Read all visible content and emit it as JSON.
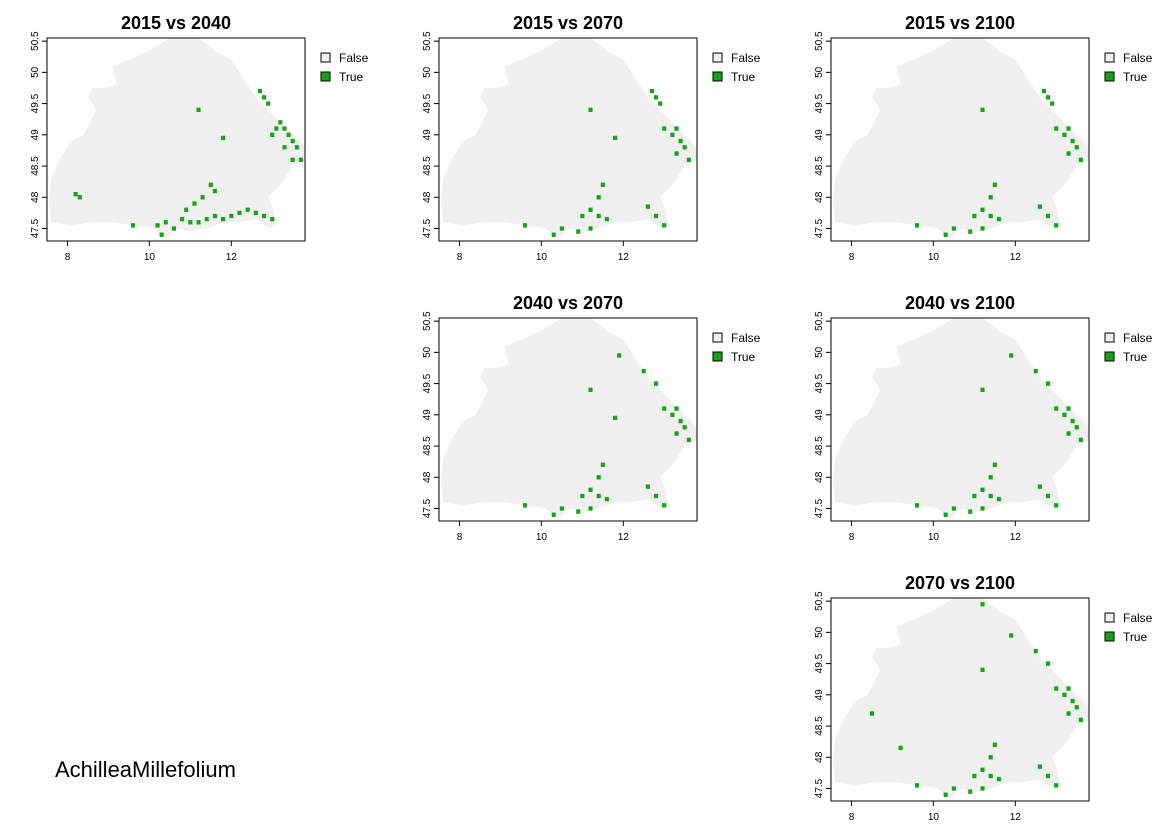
{
  "species_label": "AchilleaMillefolium",
  "colors": {
    "false": "#f0f0f0",
    "true": "#16a416",
    "axis": "#000000"
  },
  "chart_data": [
    {
      "type": "heatmap",
      "title": "2015 vs 2040",
      "xlabel": "",
      "ylabel": "",
      "xlim": [
        7.5,
        13.8
      ],
      "ylim": [
        47.3,
        50.55
      ],
      "x_ticks": [
        8,
        10,
        12
      ],
      "y_ticks": [
        "47.5",
        "48",
        "48.5",
        "49",
        "49.5",
        "50",
        "50.5"
      ],
      "legend": {
        "position": "right",
        "entries": [
          "False",
          "True"
        ]
      },
      "true_cells": [
        [
          12.7,
          49.7
        ],
        [
          12.8,
          49.6
        ],
        [
          12.9,
          49.5
        ],
        [
          13.0,
          49.0
        ],
        [
          13.1,
          49.1
        ],
        [
          13.2,
          49.2
        ],
        [
          13.3,
          49.1
        ],
        [
          13.4,
          49.0
        ],
        [
          13.5,
          48.9
        ],
        [
          13.6,
          48.8
        ],
        [
          13.3,
          48.8
        ],
        [
          13.5,
          48.6
        ],
        [
          13.7,
          48.6
        ],
        [
          11.2,
          49.4
        ],
        [
          11.8,
          48.95
        ],
        [
          8.2,
          48.05
        ],
        [
          8.3,
          48.0
        ],
        [
          11.5,
          48.2
        ],
        [
          11.6,
          48.1
        ],
        [
          11.3,
          48.0
        ],
        [
          11.1,
          47.9
        ],
        [
          10.9,
          47.8
        ],
        [
          10.8,
          47.65
        ],
        [
          11.0,
          47.6
        ],
        [
          11.2,
          47.6
        ],
        [
          11.4,
          47.65
        ],
        [
          11.6,
          47.7
        ],
        [
          11.8,
          47.65
        ],
        [
          12.0,
          47.7
        ],
        [
          12.2,
          47.75
        ],
        [
          12.4,
          47.8
        ],
        [
          12.6,
          47.75
        ],
        [
          12.8,
          47.7
        ],
        [
          13.0,
          47.65
        ],
        [
          10.2,
          47.55
        ],
        [
          10.4,
          47.6
        ],
        [
          10.6,
          47.5
        ],
        [
          10.3,
          47.4
        ],
        [
          9.6,
          47.55
        ]
      ]
    },
    {
      "type": "heatmap",
      "title": "2015 vs 2070",
      "xlabel": "",
      "ylabel": "",
      "xlim": [
        7.5,
        13.8
      ],
      "ylim": [
        47.3,
        50.55
      ],
      "x_ticks": [
        8,
        10,
        12
      ],
      "y_ticks": [
        "47.5",
        "48",
        "48.5",
        "49",
        "49.5",
        "50",
        "50.5"
      ],
      "legend": {
        "position": "right",
        "entries": [
          "False",
          "True"
        ]
      },
      "true_cells": [
        [
          12.7,
          49.7
        ],
        [
          12.8,
          49.6
        ],
        [
          12.9,
          49.5
        ],
        [
          13.0,
          49.1
        ],
        [
          13.2,
          49.0
        ],
        [
          13.3,
          49.1
        ],
        [
          13.4,
          48.9
        ],
        [
          13.5,
          48.8
        ],
        [
          13.6,
          48.6
        ],
        [
          13.3,
          48.7
        ],
        [
          11.2,
          49.4
        ],
        [
          11.8,
          48.95
        ],
        [
          11.5,
          48.2
        ],
        [
          11.4,
          48.0
        ],
        [
          11.2,
          47.8
        ],
        [
          11.0,
          47.7
        ],
        [
          11.4,
          47.7
        ],
        [
          11.6,
          47.65
        ],
        [
          11.2,
          47.5
        ],
        [
          10.9,
          47.45
        ],
        [
          10.3,
          47.4
        ],
        [
          10.5,
          47.5
        ],
        [
          9.6,
          47.55
        ],
        [
          12.6,
          47.85
        ],
        [
          12.8,
          47.7
        ],
        [
          13.0,
          47.55
        ]
      ]
    },
    {
      "type": "heatmap",
      "title": "2015 vs 2100",
      "xlabel": "",
      "ylabel": "",
      "xlim": [
        7.5,
        13.8
      ],
      "ylim": [
        47.3,
        50.55
      ],
      "x_ticks": [
        8,
        10,
        12
      ],
      "y_ticks": [
        "47.5",
        "48",
        "48.5",
        "49",
        "49.5",
        "50",
        "50.5"
      ],
      "legend": {
        "position": "right",
        "entries": [
          "False",
          "True"
        ]
      },
      "true_cells": [
        [
          12.7,
          49.7
        ],
        [
          12.8,
          49.6
        ],
        [
          12.9,
          49.5
        ],
        [
          13.0,
          49.1
        ],
        [
          13.2,
          49.0
        ],
        [
          13.3,
          49.1
        ],
        [
          13.4,
          48.9
        ],
        [
          13.5,
          48.8
        ],
        [
          13.6,
          48.6
        ],
        [
          13.3,
          48.7
        ],
        [
          11.2,
          49.4
        ],
        [
          11.5,
          48.2
        ],
        [
          11.4,
          48.0
        ],
        [
          11.2,
          47.8
        ],
        [
          11.0,
          47.7
        ],
        [
          11.4,
          47.7
        ],
        [
          11.6,
          47.65
        ],
        [
          11.2,
          47.5
        ],
        [
          10.9,
          47.45
        ],
        [
          10.3,
          47.4
        ],
        [
          10.5,
          47.5
        ],
        [
          9.6,
          47.55
        ],
        [
          12.6,
          47.85
        ],
        [
          12.8,
          47.7
        ],
        [
          13.0,
          47.55
        ]
      ]
    },
    {
      "type": "heatmap",
      "title": "2040 vs 2070",
      "xlabel": "",
      "ylabel": "",
      "xlim": [
        7.5,
        13.8
      ],
      "ylim": [
        47.3,
        50.55
      ],
      "x_ticks": [
        8,
        10,
        12
      ],
      "y_ticks": [
        "47.5",
        "48",
        "48.5",
        "49",
        "49.5",
        "50",
        "50.5"
      ],
      "legend": {
        "position": "right",
        "entries": [
          "False",
          "True"
        ]
      },
      "true_cells": [
        [
          11.9,
          49.95
        ],
        [
          12.5,
          49.7
        ],
        [
          12.8,
          49.5
        ],
        [
          13.0,
          49.1
        ],
        [
          13.2,
          49.0
        ],
        [
          13.3,
          49.1
        ],
        [
          13.4,
          48.9
        ],
        [
          13.5,
          48.8
        ],
        [
          13.6,
          48.6
        ],
        [
          13.3,
          48.7
        ],
        [
          11.2,
          49.4
        ],
        [
          11.8,
          48.95
        ],
        [
          11.5,
          48.2
        ],
        [
          11.4,
          48.0
        ],
        [
          11.2,
          47.8
        ],
        [
          11.0,
          47.7
        ],
        [
          11.4,
          47.7
        ],
        [
          11.6,
          47.65
        ],
        [
          11.2,
          47.5
        ],
        [
          10.9,
          47.45
        ],
        [
          10.3,
          47.4
        ],
        [
          10.5,
          47.5
        ],
        [
          9.6,
          47.55
        ],
        [
          12.6,
          47.85
        ],
        [
          12.8,
          47.7
        ],
        [
          13.0,
          47.55
        ]
      ]
    },
    {
      "type": "heatmap",
      "title": "2040 vs 2100",
      "xlabel": "",
      "ylabel": "",
      "xlim": [
        7.5,
        13.8
      ],
      "ylim": [
        47.3,
        50.55
      ],
      "x_ticks": [
        8,
        10,
        12
      ],
      "y_ticks": [
        "47.5",
        "48",
        "48.5",
        "49",
        "49.5",
        "50",
        "50.5"
      ],
      "legend": {
        "position": "right",
        "entries": [
          "False",
          "True"
        ]
      },
      "true_cells": [
        [
          11.9,
          49.95
        ],
        [
          12.5,
          49.7
        ],
        [
          12.8,
          49.5
        ],
        [
          13.0,
          49.1
        ],
        [
          13.2,
          49.0
        ],
        [
          13.3,
          49.1
        ],
        [
          13.4,
          48.9
        ],
        [
          13.5,
          48.8
        ],
        [
          13.6,
          48.6
        ],
        [
          13.3,
          48.7
        ],
        [
          11.2,
          49.4
        ],
        [
          11.5,
          48.2
        ],
        [
          11.4,
          48.0
        ],
        [
          11.2,
          47.8
        ],
        [
          11.0,
          47.7
        ],
        [
          11.4,
          47.7
        ],
        [
          11.6,
          47.65
        ],
        [
          11.2,
          47.5
        ],
        [
          10.9,
          47.45
        ],
        [
          10.3,
          47.4
        ],
        [
          10.5,
          47.5
        ],
        [
          9.6,
          47.55
        ],
        [
          12.6,
          47.85
        ],
        [
          12.8,
          47.7
        ],
        [
          13.0,
          47.55
        ]
      ]
    },
    {
      "type": "heatmap",
      "title": "2070 vs 2100",
      "xlabel": "",
      "ylabel": "",
      "xlim": [
        7.5,
        13.8
      ],
      "ylim": [
        47.3,
        50.55
      ],
      "x_ticks": [
        8,
        10,
        12
      ],
      "y_ticks": [
        "47.5",
        "48",
        "48.5",
        "49",
        "49.5",
        "50",
        "50.5"
      ],
      "legend": {
        "position": "right",
        "entries": [
          "False",
          "True"
        ]
      },
      "true_cells": [
        [
          11.2,
          50.45
        ],
        [
          11.9,
          49.95
        ],
        [
          12.5,
          49.7
        ],
        [
          12.8,
          49.5
        ],
        [
          13.0,
          49.1
        ],
        [
          13.2,
          49.0
        ],
        [
          13.3,
          49.1
        ],
        [
          13.4,
          48.9
        ],
        [
          13.5,
          48.8
        ],
        [
          13.6,
          48.6
        ],
        [
          13.3,
          48.7
        ],
        [
          11.2,
          49.4
        ],
        [
          8.5,
          48.7
        ],
        [
          9.2,
          48.15
        ],
        [
          11.5,
          48.2
        ],
        [
          11.4,
          48.0
        ],
        [
          11.2,
          47.8
        ],
        [
          11.0,
          47.7
        ],
        [
          11.4,
          47.7
        ],
        [
          11.6,
          47.65
        ],
        [
          11.2,
          47.5
        ],
        [
          10.9,
          47.45
        ],
        [
          10.3,
          47.4
        ],
        [
          10.5,
          47.5
        ],
        [
          9.6,
          47.55
        ],
        [
          12.6,
          47.85
        ],
        [
          12.8,
          47.7
        ],
        [
          13.0,
          47.55
        ]
      ]
    }
  ]
}
